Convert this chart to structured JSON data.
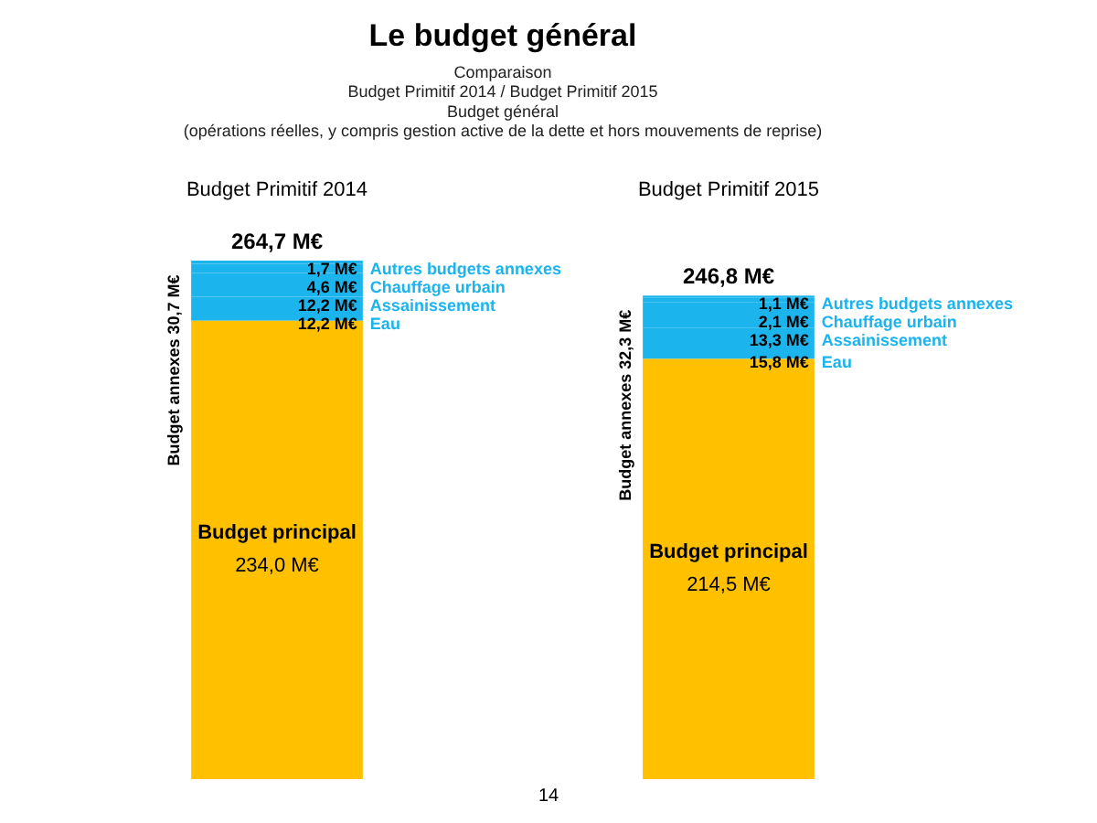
{
  "chart_data": {
    "type": "bar",
    "stacked": true,
    "title": "Le budget général",
    "subtitle": [
      "Comparaison",
      "Budget Primitif 2014 / Budget Primitif 2015",
      "Budget général",
      "(opérations réelles, y compris gestion active de la dette et hors mouvements de reprise)"
    ],
    "categories": [
      "Budget Primitif 2014",
      "Budget Primitif 2015"
    ],
    "series": [
      {
        "name": "Budget principal",
        "color": "#ffc000",
        "values": [
          234.0,
          214.5
        ],
        "value_labels": [
          "234,0 M€",
          "214,5 M€"
        ]
      },
      {
        "name": "Eau",
        "color": "#1cb4ec",
        "values": [
          12.2,
          15.8
        ],
        "value_labels": [
          "12,2 M€",
          "15,8 M€"
        ]
      },
      {
        "name": "Assainissement",
        "color": "#1cb4ec",
        "values": [
          12.2,
          13.3
        ],
        "value_labels": [
          "12,2 M€",
          "13,3 M€"
        ]
      },
      {
        "name": "Chauffage urbain",
        "color": "#1cb4ec",
        "values": [
          4.6,
          2.1
        ],
        "value_labels": [
          "4,6 M€",
          "2,1 M€"
        ]
      },
      {
        "name": "Autres budgets annexes",
        "color": "#1cb4ec",
        "values": [
          1.7,
          1.1
        ],
        "value_labels": [
          "1,7 M€",
          "1,1 M€"
        ]
      }
    ],
    "totals": [
      "264,7 M€",
      "246,8 M€"
    ],
    "annotations": [
      "Budget annexes 30,7 M€",
      "Budget annexes 32,3 M€",
      "14"
    ],
    "tick_labels": "x",
    "grid": false,
    "legend": false
  }
}
